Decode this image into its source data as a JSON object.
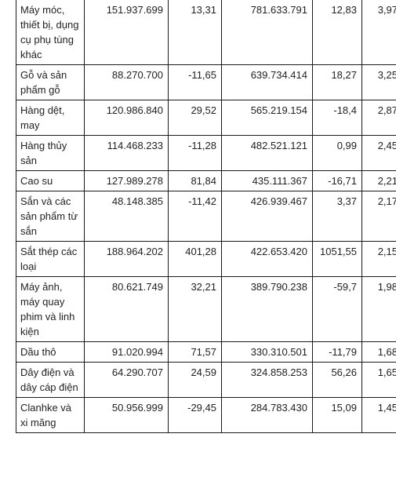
{
  "table": {
    "rows": [
      {
        "name": "Máy móc, thiết bị, dụng cụ phụ tùng khác",
        "v1": "151.937.699",
        "p1": "13,31",
        "v2": "781.633.791",
        "p2": "12,83",
        "share": "3,97"
      },
      {
        "name": "Gỗ và sản phẩm gỗ",
        "v1": "88.270.700",
        "p1": "-11,65",
        "v2": "639.734.414",
        "p2": "18,27",
        "share": "3,25"
      },
      {
        "name": "Hàng dệt, may",
        "v1": "120.986.840",
        "p1": "29,52",
        "v2": "565.219.154",
        "p2": "-18,4",
        "share": "2,87"
      },
      {
        "name": "Hàng thủy sản",
        "v1": "114.468.233",
        "p1": "-11,28",
        "v2": "482.521.121",
        "p2": "0,99",
        "share": "2,45"
      },
      {
        "name": "Cao su",
        "v1": "127.989.278",
        "p1": "81,84",
        "v2": "435.111.367",
        "p2": "-16,71",
        "share": "2,21"
      },
      {
        "name": "Sắn và các sản phẩm từ sắn",
        "v1": "48.148.385",
        "p1": "-11,42",
        "v2": "426.939.467",
        "p2": "3,37",
        "share": "2,17"
      },
      {
        "name": "Sắt thép các loại",
        "v1": "188.964.202",
        "p1": "401,28",
        "v2": "422.653.420",
        "p2": "1051,55",
        "share": "2,15"
      },
      {
        "name": "Máy ảnh, máy quay phim và linh kiện",
        "v1": "80.621.749",
        "p1": "32,21",
        "v2": "389.790.238",
        "p2": "-59,7",
        "share": "1,98"
      },
      {
        "name": "Dầu thô",
        "v1": "91.020.994",
        "p1": "71,57",
        "v2": "330.310.501",
        "p2": "-11,79",
        "share": "1,68"
      },
      {
        "name": "Dây điện và dây cáp điện",
        "v1": "64.290.707",
        "p1": "24,59",
        "v2": "324.858.253",
        "p2": "56,26",
        "share": "1,65"
      },
      {
        "name": "Clanhke và xi măng",
        "v1": "50.956.999",
        "p1": "-29,45",
        "v2": "284.783.430",
        "p2": "15,09",
        "share": "1,45"
      }
    ]
  }
}
